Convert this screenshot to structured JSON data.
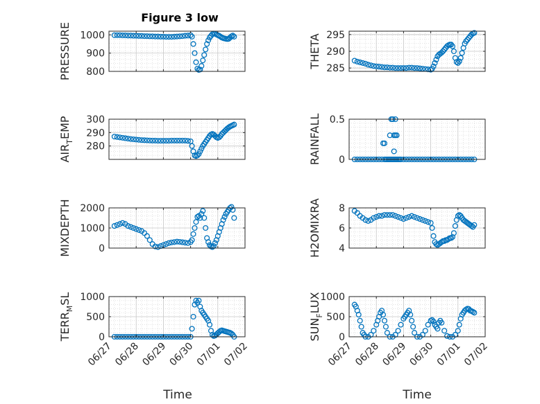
{
  "figure": {
    "title": "Figure 3 low",
    "xlabel": "Time",
    "marker_color": "#0072BD",
    "axis_color": "#262626",
    "grid_color": "#d0d0d0"
  },
  "chart_data": [
    {
      "type": "scatter",
      "id": "pressure",
      "ylabel_main": "PRESSURE",
      "ylabel_sub": "",
      "ylim": [
        800,
        1020
      ],
      "yticks": [
        800,
        900,
        1000
      ],
      "yticklabels": [
        "800",
        "900",
        "1000"
      ],
      "xlim": [
        0,
        5
      ],
      "xticks": [
        0,
        1,
        2,
        3,
        4,
        5
      ],
      "xticklabels": [
        "06/27",
        "06/28",
        "06/29",
        "06/30",
        "07/01",
        "07/02"
      ],
      "x": [
        0.2,
        0.3,
        0.4,
        0.5,
        0.6,
        0.7,
        0.8,
        0.9,
        1.0,
        1.1,
        1.2,
        1.3,
        1.4,
        1.5,
        1.6,
        1.7,
        1.8,
        1.9,
        2.0,
        2.1,
        2.2,
        2.3,
        2.4,
        2.5,
        2.6,
        2.7,
        2.8,
        2.9,
        3.0,
        3.05,
        3.1,
        3.15,
        3.2,
        3.25,
        3.3,
        3.35,
        3.4,
        3.45,
        3.5,
        3.55,
        3.6,
        3.65,
        3.7,
        3.75,
        3.8,
        3.85,
        3.9,
        3.95,
        4.0,
        4.05,
        4.1,
        4.15,
        4.2,
        4.25,
        4.3,
        4.35,
        4.4,
        4.45,
        4.5,
        4.55,
        4.6
      ],
      "y": [
        998,
        998,
        998,
        997,
        997,
        996,
        996,
        995,
        995,
        994,
        994,
        993,
        993,
        992,
        992,
        991,
        991,
        990,
        990,
        989,
        989,
        989,
        990,
        991,
        992,
        993,
        995,
        996,
        998,
        990,
        950,
        900,
        850,
        815,
        808,
        810,
        830,
        860,
        890,
        920,
        950,
        970,
        985,
        995,
        1003,
        1007,
        1006,
        1002,
        998,
        995,
        990,
        985,
        982,
        980,
        978,
        977,
        978,
        985,
        992,
        996,
        990
      ]
    },
    {
      "type": "scatter",
      "id": "theta",
      "ylabel_main": "THETA",
      "ylabel_sub": "",
      "ylim": [
        284,
        296
      ],
      "yticks": [
        285,
        290,
        295
      ],
      "yticklabels": [
        "285",
        "290",
        "295"
      ],
      "xlim": [
        0,
        5
      ],
      "xticks": [
        0,
        1,
        2,
        3,
        4,
        5
      ],
      "xticklabels": [
        "06/27",
        "06/28",
        "06/29",
        "06/30",
        "07/01",
        "07/02"
      ],
      "x": [
        0.2,
        0.3,
        0.4,
        0.5,
        0.6,
        0.7,
        0.8,
        0.9,
        1.0,
        1.1,
        1.2,
        1.3,
        1.4,
        1.5,
        1.6,
        1.7,
        1.8,
        1.9,
        2.0,
        2.1,
        2.2,
        2.3,
        2.4,
        2.5,
        2.6,
        2.7,
        2.8,
        2.9,
        3.0,
        3.05,
        3.1,
        3.15,
        3.2,
        3.25,
        3.3,
        3.35,
        3.4,
        3.45,
        3.5,
        3.55,
        3.6,
        3.65,
        3.7,
        3.75,
        3.8,
        3.85,
        3.9,
        3.95,
        4.0,
        4.05,
        4.1,
        4.15,
        4.2,
        4.25,
        4.3,
        4.35,
        4.4,
        4.45,
        4.5,
        4.55,
        4.6
      ],
      "y": [
        287.2,
        286.9,
        286.7,
        286.5,
        286.3,
        286.0,
        285.8,
        285.6,
        285.5,
        285.4,
        285.3,
        285.2,
        285.2,
        285.1,
        285.1,
        285.0,
        285.0,
        285.0,
        285.0,
        285.0,
        285.1,
        285.1,
        285.0,
        285.0,
        284.9,
        284.8,
        284.7,
        284.6,
        284.5,
        284.8,
        285.5,
        286.5,
        287.5,
        288.5,
        289.0,
        289.3,
        289.6,
        290.0,
        290.5,
        291.0,
        291.5,
        291.8,
        292.0,
        292.0,
        291.5,
        290.0,
        288.0,
        286.8,
        286.5,
        287.0,
        288.0,
        289.5,
        291.0,
        292.3,
        293.0,
        293.5,
        294.0,
        294.5,
        295.0,
        295.3,
        295.5
      ]
    },
    {
      "type": "scatter",
      "id": "air-temp",
      "ylabel_main": "AIR",
      "ylabel_sub": "T",
      "ylabel_rest": "EMP",
      "ylim": [
        270,
        300
      ],
      "yticks": [
        280,
        290,
        300
      ],
      "yticklabels": [
        "280",
        "290",
        "300"
      ],
      "xlim": [
        0,
        5
      ],
      "xticks": [
        0,
        1,
        2,
        3,
        4,
        5
      ],
      "xticklabels": [
        "06/27",
        "06/28",
        "06/29",
        "06/30",
        "07/01",
        "07/02"
      ],
      "x": [
        0.2,
        0.3,
        0.4,
        0.5,
        0.6,
        0.7,
        0.8,
        0.9,
        1.0,
        1.1,
        1.2,
        1.3,
        1.4,
        1.5,
        1.6,
        1.7,
        1.8,
        1.9,
        2.0,
        2.1,
        2.2,
        2.3,
        2.4,
        2.5,
        2.6,
        2.7,
        2.8,
        2.9,
        3.0,
        3.05,
        3.1,
        3.15,
        3.2,
        3.25,
        3.3,
        3.35,
        3.4,
        3.45,
        3.5,
        3.55,
        3.6,
        3.65,
        3.7,
        3.75,
        3.8,
        3.85,
        3.9,
        3.95,
        4.0,
        4.05,
        4.1,
        4.15,
        4.2,
        4.25,
        4.3,
        4.35,
        4.4,
        4.45,
        4.5,
        4.55,
        4.6
      ],
      "y": [
        287.0,
        286.7,
        286.4,
        286.1,
        285.8,
        285.5,
        285.2,
        285.0,
        284.8,
        284.6,
        284.4,
        284.3,
        284.2,
        284.1,
        284.0,
        284.0,
        283.9,
        283.9,
        283.9,
        283.9,
        283.9,
        284.0,
        284.0,
        284.0,
        284.0,
        284.0,
        284.0,
        283.8,
        283.5,
        280.0,
        276.0,
        273.0,
        272.5,
        273.0,
        274.0,
        276.0,
        278.0,
        280.0,
        281.5,
        283.0,
        284.5,
        286.0,
        287.5,
        288.5,
        289.0,
        288.5,
        287.5,
        286.5,
        286.0,
        286.5,
        287.5,
        289.0,
        290.0,
        291.0,
        292.0,
        293.0,
        293.8,
        294.5,
        295.0,
        295.5,
        296.0
      ]
    },
    {
      "type": "scatter",
      "id": "rainfall",
      "ylabel_main": "RAINFALL",
      "ylabel_sub": "",
      "ylim": [
        0,
        0.5
      ],
      "yticks": [
        0,
        0.5
      ],
      "yticklabels": [
        "0",
        "0.5"
      ],
      "xlim": [
        0,
        5
      ],
      "xticks": [
        0,
        1,
        2,
        3,
        4,
        5
      ],
      "xticklabels": [
        "06/27",
        "06/28",
        "06/29",
        "06/30",
        "07/01",
        "07/02"
      ],
      "x": [
        0.2,
        0.3,
        0.4,
        0.5,
        0.6,
        0.7,
        0.8,
        0.9,
        1.0,
        1.1,
        1.2,
        1.3,
        1.35,
        1.4,
        1.45,
        1.5,
        1.55,
        1.6,
        1.65,
        1.7,
        1.75,
        1.8,
        1.85,
        1.9,
        2.0,
        2.1,
        2.2,
        2.3,
        2.4,
        2.5,
        2.6,
        2.7,
        2.8,
        2.9,
        3.0,
        3.1,
        3.2,
        3.3,
        3.4,
        3.5,
        3.6,
        3.7,
        3.8,
        3.9,
        4.0,
        4.1,
        4.2,
        4.3,
        4.4,
        4.5,
        4.6,
        1.25,
        1.3,
        1.5,
        1.55,
        1.6,
        1.65,
        1.7,
        1.75,
        1.65,
        1.6,
        1.7
      ],
      "y": [
        0,
        0,
        0,
        0,
        0,
        0,
        0,
        0,
        0,
        0,
        0,
        0,
        0,
        0,
        0,
        0,
        0,
        0,
        0,
        0,
        0,
        0,
        0,
        0,
        0,
        0,
        0,
        0,
        0,
        0,
        0,
        0,
        0,
        0,
        0,
        0,
        0,
        0,
        0,
        0,
        0,
        0,
        0,
        0,
        0,
        0,
        0,
        0,
        0,
        0,
        0,
        0.2,
        0.2,
        0.3,
        0.5,
        0.5,
        0.3,
        0.3,
        0.3,
        0.1,
        0.5,
        0.5
      ]
    },
    {
      "type": "scatter",
      "id": "mixdepth",
      "ylabel_main": "MIXDEPTH",
      "ylabel_sub": "",
      "ylim": [
        0,
        2000
      ],
      "yticks": [
        0,
        1000,
        2000
      ],
      "yticklabels": [
        "0",
        "1000",
        "2000"
      ],
      "xlim": [
        0,
        5
      ],
      "xticks": [
        0,
        1,
        2,
        3,
        4,
        5
      ],
      "xticklabels": [
        "06/27",
        "06/28",
        "06/29",
        "06/30",
        "07/01",
        "07/02"
      ],
      "x": [
        0.2,
        0.3,
        0.4,
        0.5,
        0.6,
        0.7,
        0.8,
        0.9,
        1.0,
        1.1,
        1.2,
        1.3,
        1.4,
        1.5,
        1.6,
        1.7,
        1.8,
        1.9,
        2.0,
        2.1,
        2.2,
        2.3,
        2.4,
        2.5,
        2.6,
        2.7,
        2.8,
        2.9,
        3.0,
        3.05,
        3.1,
        3.15,
        3.2,
        3.25,
        3.3,
        3.35,
        3.4,
        3.45,
        3.5,
        3.55,
        3.6,
        3.65,
        3.7,
        3.75,
        3.8,
        3.85,
        3.9,
        3.95,
        4.0,
        4.05,
        4.1,
        4.15,
        4.2,
        4.25,
        4.3,
        4.35,
        4.4,
        4.45,
        4.5,
        4.55,
        4.6
      ],
      "y": [
        1100,
        1150,
        1200,
        1250,
        1200,
        1100,
        1050,
        1000,
        950,
        900,
        850,
        750,
        600,
        400,
        200,
        80,
        50,
        100,
        150,
        200,
        250,
        280,
        300,
        320,
        310,
        290,
        270,
        250,
        300,
        400,
        700,
        1000,
        1300,
        1550,
        1600,
        1500,
        1700,
        1850,
        1500,
        1000,
        500,
        300,
        150,
        80,
        50,
        100,
        250,
        400,
        600,
        800,
        1000,
        1200,
        1400,
        1550,
        1700,
        1800,
        1900,
        2000,
        2050,
        1900,
        1500
      ]
    },
    {
      "type": "scatter",
      "id": "h2omixra",
      "ylabel_main": "H2OMIXRA",
      "ylabel_sub": "",
      "ylim": [
        4,
        8
      ],
      "yticks": [
        4,
        6,
        8
      ],
      "yticklabels": [
        "4",
        "6",
        "8"
      ],
      "xlim": [
        0,
        5
      ],
      "xticks": [
        0,
        1,
        2,
        3,
        4,
        5
      ],
      "xticklabels": [
        "06/27",
        "06/28",
        "06/29",
        "06/30",
        "07/01",
        "07/02"
      ],
      "x": [
        0.2,
        0.3,
        0.4,
        0.5,
        0.6,
        0.7,
        0.8,
        0.9,
        1.0,
        1.1,
        1.2,
        1.3,
        1.4,
        1.5,
        1.6,
        1.7,
        1.8,
        1.9,
        2.0,
        2.1,
        2.2,
        2.3,
        2.4,
        2.5,
        2.6,
        2.7,
        2.8,
        2.9,
        3.0,
        3.05,
        3.1,
        3.15,
        3.2,
        3.25,
        3.3,
        3.35,
        3.4,
        3.45,
        3.5,
        3.55,
        3.6,
        3.65,
        3.7,
        3.75,
        3.8,
        3.85,
        3.9,
        3.95,
        4.0,
        4.05,
        4.1,
        4.15,
        4.2,
        4.25,
        4.3,
        4.35,
        4.4,
        4.45,
        4.5,
        4.55,
        4.6
      ],
      "y": [
        7.7,
        7.5,
        7.2,
        7.0,
        6.8,
        6.7,
        6.8,
        7.0,
        7.1,
        7.2,
        7.2,
        7.3,
        7.3,
        7.3,
        7.3,
        7.2,
        7.1,
        7.0,
        6.9,
        7.0,
        7.1,
        7.2,
        7.1,
        7.0,
        6.9,
        6.8,
        6.7,
        6.6,
        6.5,
        6.0,
        5.2,
        4.6,
        4.4,
        4.3,
        4.4,
        4.5,
        4.6,
        4.7,
        4.7,
        4.8,
        4.8,
        4.9,
        5.0,
        5.0,
        5.1,
        5.5,
        6.2,
        6.8,
        7.2,
        7.3,
        7.2,
        7.0,
        6.8,
        6.7,
        6.6,
        6.5,
        6.4,
        6.3,
        6.2,
        6.1,
        6.3
      ]
    },
    {
      "type": "scatter",
      "id": "terr-msl",
      "ylabel_main": "TERR",
      "ylabel_sub": "M",
      "ylabel_rest": "SL",
      "ylim": [
        0,
        1000
      ],
      "yticks": [
        0,
        500,
        1000
      ],
      "yticklabels": [
        "0",
        "500",
        "1000"
      ],
      "xlim": [
        0,
        5
      ],
      "xticks": [
        0,
        1,
        2,
        3,
        4,
        5
      ],
      "xticklabels": [
        "06/27",
        "06/28",
        "06/29",
        "06/30",
        "07/01",
        "07/02"
      ],
      "x": [
        0.2,
        0.3,
        0.4,
        0.5,
        0.6,
        0.7,
        0.8,
        0.9,
        1.0,
        1.1,
        1.2,
        1.3,
        1.4,
        1.5,
        1.6,
        1.7,
        1.8,
        1.9,
        2.0,
        2.1,
        2.2,
        2.3,
        2.4,
        2.5,
        2.6,
        2.7,
        2.8,
        2.9,
        3.0,
        3.05,
        3.1,
        3.15,
        3.2,
        3.25,
        3.3,
        3.35,
        3.4,
        3.45,
        3.5,
        3.55,
        3.6,
        3.65,
        3.7,
        3.75,
        3.8,
        3.85,
        3.9,
        3.95,
        4.0,
        4.05,
        4.1,
        4.15,
        4.2,
        4.25,
        4.3,
        4.35,
        4.4,
        4.45,
        4.5,
        4.55,
        4.6
      ],
      "y": [
        0,
        0,
        0,
        0,
        0,
        0,
        0,
        0,
        0,
        0,
        0,
        0,
        0,
        0,
        0,
        0,
        0,
        0,
        0,
        0,
        0,
        0,
        0,
        0,
        0,
        0,
        0,
        0,
        0,
        200,
        500,
        800,
        900,
        850,
        900,
        750,
        650,
        600,
        550,
        500,
        450,
        400,
        300,
        150,
        50,
        20,
        30,
        60,
        90,
        120,
        150,
        160,
        150,
        140,
        130,
        120,
        110,
        100,
        80,
        50,
        0
      ]
    },
    {
      "type": "scatter",
      "id": "sun-flux",
      "ylabel_main": "SUN",
      "ylabel_sub": "F",
      "ylabel_rest": "LUX",
      "ylim": [
        0,
        1000
      ],
      "yticks": [
        0,
        500,
        1000
      ],
      "yticklabels": [
        "0",
        "500",
        "1000"
      ],
      "xlim": [
        0,
        5
      ],
      "xticks": [
        0,
        1,
        2,
        3,
        4,
        5
      ],
      "xticklabels": [
        "06/27",
        "06/28",
        "06/29",
        "06/30",
        "07/01",
        "07/02"
      ],
      "x": [
        0.2,
        0.25,
        0.3,
        0.35,
        0.4,
        0.45,
        0.5,
        0.55,
        0.6,
        0.7,
        0.8,
        0.9,
        1.0,
        1.05,
        1.1,
        1.15,
        1.2,
        1.25,
        1.3,
        1.35,
        1.4,
        1.5,
        1.6,
        1.7,
        1.8,
        1.9,
        2.0,
        2.05,
        2.1,
        2.15,
        2.2,
        2.25,
        2.3,
        2.35,
        2.4,
        2.5,
        2.6,
        2.7,
        2.8,
        2.9,
        3.0,
        3.05,
        3.1,
        3.15,
        3.2,
        3.25,
        3.3,
        3.35,
        3.4,
        3.5,
        3.6,
        3.7,
        3.8,
        3.9,
        4.0,
        4.05,
        4.1,
        4.15,
        4.2,
        4.25,
        4.3,
        4.35,
        4.4,
        4.45,
        4.5,
        4.55,
        4.6
      ],
      "y": [
        800,
        750,
        650,
        550,
        400,
        250,
        100,
        50,
        0,
        0,
        50,
        150,
        300,
        400,
        500,
        600,
        650,
        550,
        400,
        250,
        100,
        0,
        0,
        50,
        150,
        300,
        450,
        500,
        550,
        600,
        650,
        550,
        400,
        250,
        100,
        0,
        0,
        50,
        150,
        300,
        400,
        420,
        380,
        300,
        250,
        200,
        350,
        400,
        350,
        150,
        20,
        0,
        0,
        50,
        150,
        300,
        450,
        550,
        600,
        650,
        680,
        700,
        690,
        650,
        640,
        620,
        600
      ]
    }
  ]
}
